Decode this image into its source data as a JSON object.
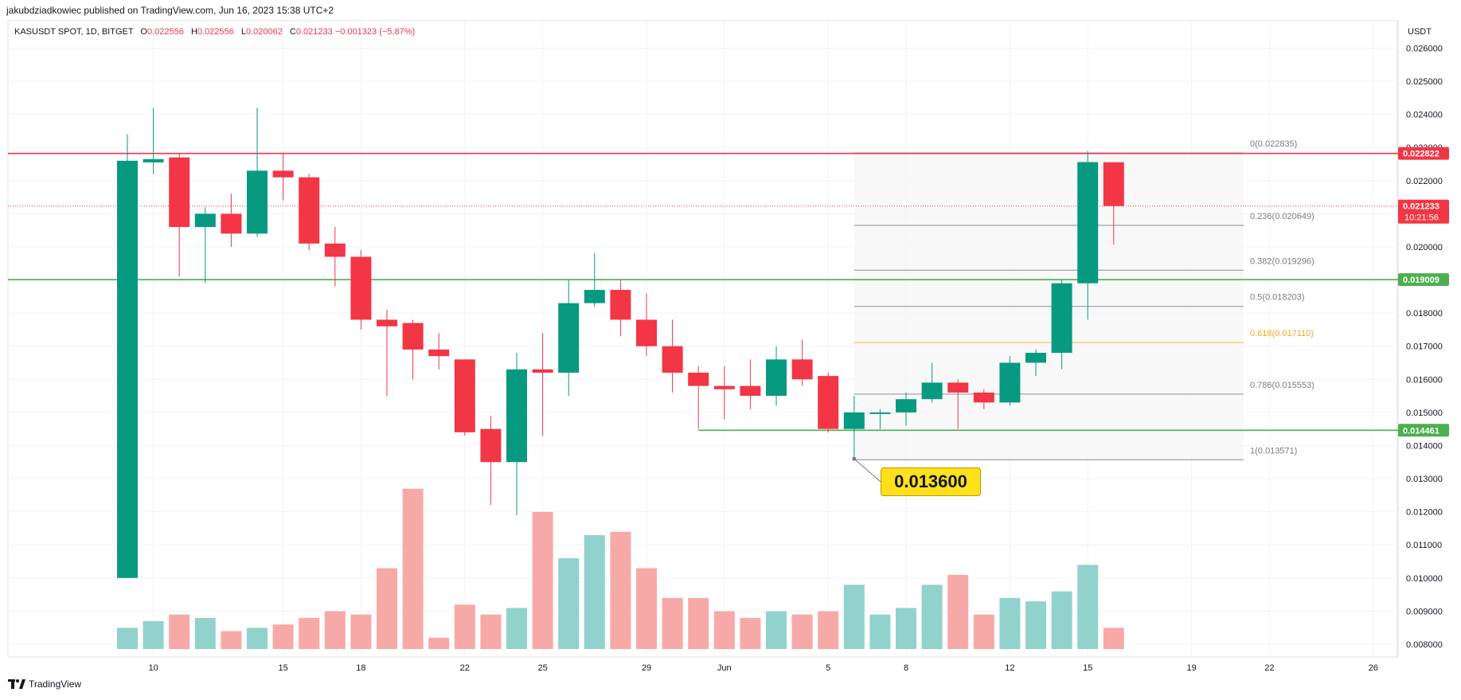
{
  "header": {
    "published_by": "jakubdziadkowiec published on TradingView.com, Jun 16, 2023 15:38 UTC+2"
  },
  "symbol": {
    "name": "KASUSDT SPOT, 1D, BITGET",
    "open_label": "O",
    "open": "0.022556",
    "high_label": "H",
    "high": "0.022556",
    "low_label": "L",
    "low": "0.020062",
    "close_label": "C",
    "close": "0.021233",
    "change": "−0.001323 (−5.87%)"
  },
  "currency": "USDT",
  "footer": {
    "brand": "TradingView"
  },
  "callout": {
    "text": "0.013600",
    "price": 0.0136
  },
  "colors": {
    "up": "#089981",
    "down": "#f23645",
    "vol_up": "#92d2cc",
    "vol_down": "#f7a9a7",
    "resistance": "#f23645",
    "support": "#4caf50",
    "fib": "#8c8c9c",
    "fib_618": "#f5b93b",
    "callout_bg": "#ffe01b"
  },
  "chart_data": {
    "type": "candlestick",
    "y_axis": {
      "range": [
        0.0078,
        0.0267
      ],
      "ticks": [
        "0.026000",
        "0.025000",
        "0.024000",
        "0.023000",
        "0.022000",
        "0.021000",
        "0.020000",
        "0.019000",
        "0.018000",
        "0.017000",
        "0.016000",
        "0.015000",
        "0.014000",
        "0.013000",
        "0.012000",
        "0.011000",
        "0.010000",
        "0.009000",
        "0.008000"
      ],
      "tick_values": [
        0.026,
        0.025,
        0.024,
        0.023,
        0.022,
        0.021,
        0.02,
        0.019,
        0.018,
        0.017,
        0.016,
        0.015,
        0.014,
        0.013,
        0.012,
        0.011,
        0.01,
        0.009,
        0.008
      ]
    },
    "x_axis": {
      "first_date": "2023-05-09",
      "last_date": "2023-06-27",
      "ticks": [
        {
          "label": "10",
          "date": "2023-05-10"
        },
        {
          "label": "15",
          "date": "2023-05-15"
        },
        {
          "label": "18",
          "date": "2023-05-18"
        },
        {
          "label": "22",
          "date": "2023-05-22"
        },
        {
          "label": "25",
          "date": "2023-05-25"
        },
        {
          "label": "29",
          "date": "2023-05-29"
        },
        {
          "label": "Jun",
          "date": "2023-06-01"
        },
        {
          "label": "5",
          "date": "2023-06-05"
        },
        {
          "label": "8",
          "date": "2023-06-08"
        },
        {
          "label": "12",
          "date": "2023-06-12"
        },
        {
          "label": "15",
          "date": "2023-06-15"
        },
        {
          "label": "19",
          "date": "2023-06-19"
        },
        {
          "label": "22",
          "date": "2023-06-22"
        },
        {
          "label": "26",
          "date": "2023-06-26"
        }
      ]
    },
    "candles": [
      {
        "date": "2023-05-09",
        "o": 0.01,
        "h": 0.0234,
        "l": 0.01,
        "c": 0.0226,
        "v": 0.0084
      },
      {
        "date": "2023-05-10",
        "o": 0.02255,
        "h": 0.0242,
        "l": 0.0222,
        "c": 0.02265,
        "v": 0.0086
      },
      {
        "date": "2023-05-11",
        "o": 0.0227,
        "h": 0.0228,
        "l": 0.0191,
        "c": 0.0206,
        "v": 0.0088
      },
      {
        "date": "2023-05-12",
        "o": 0.0206,
        "h": 0.0212,
        "l": 0.0189,
        "c": 0.021,
        "v": 0.0087
      },
      {
        "date": "2023-05-13",
        "o": 0.021,
        "h": 0.0216,
        "l": 0.02,
        "c": 0.0204,
        "v": 0.0083
      },
      {
        "date": "2023-05-14",
        "o": 0.0204,
        "h": 0.0242,
        "l": 0.0203,
        "c": 0.0223,
        "v": 0.0084
      },
      {
        "date": "2023-05-15",
        "o": 0.0223,
        "h": 0.0228,
        "l": 0.0214,
        "c": 0.0221,
        "v": 0.0085
      },
      {
        "date": "2023-05-16",
        "o": 0.0221,
        "h": 0.0222,
        "l": 0.0199,
        "c": 0.0201,
        "v": 0.0087
      },
      {
        "date": "2023-05-17",
        "o": 0.0201,
        "h": 0.0206,
        "l": 0.0188,
        "c": 0.0197,
        "v": 0.0089
      },
      {
        "date": "2023-05-18",
        "o": 0.0197,
        "h": 0.0199,
        "l": 0.0175,
        "c": 0.0178,
        "v": 0.0088
      },
      {
        "date": "2023-05-19",
        "o": 0.0178,
        "h": 0.0181,
        "l": 0.0155,
        "c": 0.0176,
        "v": 0.0102
      },
      {
        "date": "2023-05-20",
        "o": 0.0177,
        "h": 0.0178,
        "l": 0.016,
        "c": 0.0169,
        "v": 0.0126
      },
      {
        "date": "2023-05-21",
        "o": 0.0169,
        "h": 0.0174,
        "l": 0.0163,
        "c": 0.0167,
        "v": 0.0081
      },
      {
        "date": "2023-05-22",
        "o": 0.0166,
        "h": 0.0166,
        "l": 0.0143,
        "c": 0.0144,
        "v": 0.0091
      },
      {
        "date": "2023-05-23",
        "o": 0.0145,
        "h": 0.0149,
        "l": 0.0122,
        "c": 0.0135,
        "v": 0.0088
      },
      {
        "date": "2023-05-24",
        "o": 0.0135,
        "h": 0.0168,
        "l": 0.0119,
        "c": 0.0163,
        "v": 0.009
      },
      {
        "date": "2023-05-25",
        "o": 0.0163,
        "h": 0.0174,
        "l": 0.0143,
        "c": 0.0162,
        "v": 0.0119
      },
      {
        "date": "2023-05-26",
        "o": 0.0162,
        "h": 0.019,
        "l": 0.0155,
        "c": 0.0183,
        "v": 0.0105
      },
      {
        "date": "2023-05-27",
        "o": 0.0183,
        "h": 0.0198,
        "l": 0.0182,
        "c": 0.0187,
        "v": 0.0112
      },
      {
        "date": "2023-05-28",
        "o": 0.0187,
        "h": 0.019,
        "l": 0.0173,
        "c": 0.0178,
        "v": 0.0113
      },
      {
        "date": "2023-05-29",
        "o": 0.0178,
        "h": 0.0186,
        "l": 0.0167,
        "c": 0.017,
        "v": 0.0102
      },
      {
        "date": "2023-05-30",
        "o": 0.017,
        "h": 0.0178,
        "l": 0.0156,
        "c": 0.0162,
        "v": 0.0093
      },
      {
        "date": "2023-05-31",
        "o": 0.0162,
        "h": 0.0164,
        "l": 0.0145,
        "c": 0.0158,
        "v": 0.0093
      },
      {
        "date": "2023-06-01",
        "o": 0.0158,
        "h": 0.0164,
        "l": 0.0148,
        "c": 0.0157,
        "v": 0.0089
      },
      {
        "date": "2023-06-02",
        "o": 0.0158,
        "h": 0.0166,
        "l": 0.0151,
        "c": 0.0155,
        "v": 0.0087
      },
      {
        "date": "2023-06-03",
        "o": 0.0155,
        "h": 0.017,
        "l": 0.0152,
        "c": 0.0166,
        "v": 0.0089
      },
      {
        "date": "2023-06-04",
        "o": 0.0166,
        "h": 0.0172,
        "l": 0.0158,
        "c": 0.016,
        "v": 0.0088
      },
      {
        "date": "2023-06-05",
        "o": 0.0161,
        "h": 0.0162,
        "l": 0.0144,
        "c": 0.0145,
        "v": 0.0089
      },
      {
        "date": "2023-06-06",
        "o": 0.0145,
        "h": 0.0155,
        "l": 0.0136,
        "c": 0.015,
        "v": 0.0097
      },
      {
        "date": "2023-06-07",
        "o": 0.015,
        "h": 0.0151,
        "l": 0.0145,
        "c": 0.015,
        "v": 0.0088
      },
      {
        "date": "2023-06-08",
        "o": 0.015,
        "h": 0.0156,
        "l": 0.0146,
        "c": 0.0154,
        "v": 0.009
      },
      {
        "date": "2023-06-09",
        "o": 0.0154,
        "h": 0.0165,
        "l": 0.0153,
        "c": 0.0159,
        "v": 0.0097
      },
      {
        "date": "2023-06-10",
        "o": 0.0159,
        "h": 0.016,
        "l": 0.0145,
        "c": 0.0156,
        "v": 0.01
      },
      {
        "date": "2023-06-11",
        "o": 0.0156,
        "h": 0.0157,
        "l": 0.0151,
        "c": 0.0153,
        "v": 0.0088
      },
      {
        "date": "2023-06-12",
        "o": 0.0153,
        "h": 0.0167,
        "l": 0.0152,
        "c": 0.0165,
        "v": 0.0093
      },
      {
        "date": "2023-06-13",
        "o": 0.0165,
        "h": 0.0169,
        "l": 0.0161,
        "c": 0.0168,
        "v": 0.0092
      },
      {
        "date": "2023-06-14",
        "o": 0.0168,
        "h": 0.019,
        "l": 0.0163,
        "c": 0.0189,
        "v": 0.0095
      },
      {
        "date": "2023-06-15",
        "o": 0.0189,
        "h": 0.0229,
        "l": 0.0178,
        "c": 0.02256,
        "v": 0.0103
      },
      {
        "date": "2023-06-16",
        "o": 0.022556,
        "h": 0.022556,
        "l": 0.020062,
        "c": 0.021233,
        "v": 0.0084
      }
    ],
    "horizontal_lines": [
      {
        "name": "resistance",
        "price": 0.022822,
        "label": "0.022822",
        "color": "#f23645"
      },
      {
        "name": "support",
        "price": 0.019009,
        "label": "0.019009",
        "color": "#4caf50"
      },
      {
        "name": "low-support",
        "price": 0.014461,
        "label": "0.014461",
        "color": "#4caf50",
        "start_date": "2023-05-31"
      },
      {
        "name": "last-price",
        "price": 0.021233,
        "label": "0.021233",
        "countdown": "10:21:56",
        "color": "#f23645"
      }
    ],
    "fibonacci": {
      "start_date": "2023-06-06",
      "end_date": "2023-06-21",
      "levels": [
        {
          "ratio": "0",
          "price": 0.022835,
          "label": "0(0.022835)"
        },
        {
          "ratio": "0.236",
          "price": 0.020649,
          "label": "0.236(0.020649)"
        },
        {
          "ratio": "0.382",
          "price": 0.019296,
          "label": "0.382(0.019296)"
        },
        {
          "ratio": "0.5",
          "price": 0.018203,
          "label": "0.5(0.018203)"
        },
        {
          "ratio": "0.618",
          "price": 0.01711,
          "label": "0.618(0.017110)"
        },
        {
          "ratio": "0.786",
          "price": 0.015553,
          "label": "0.786(0.015553)"
        },
        {
          "ratio": "1",
          "price": 0.013571,
          "label": "1(0.013571)"
        }
      ]
    }
  }
}
